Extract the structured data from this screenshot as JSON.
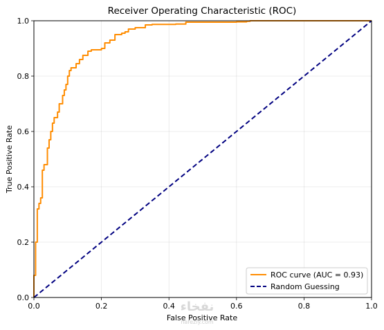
{
  "chart_data": {
    "type": "line",
    "title": "Receiver Operating Characteristic (ROC)",
    "xlabel": "False Positive Rate",
    "ylabel": "True Positive Rate",
    "xlim": [
      0.0,
      1.0
    ],
    "ylim": [
      0.0,
      1.0
    ],
    "xticks": [
      "0.0",
      "0.2",
      "0.4",
      "0.6",
      "0.8",
      "1.0"
    ],
    "yticks": [
      "0.0",
      "0.2",
      "0.4",
      "0.6",
      "0.8",
      "1.0"
    ],
    "grid": true,
    "legend_position": "lower-right",
    "series": [
      {
        "name": "ROC curve (AUC = 0.93)",
        "color": "#ff8c00",
        "style": "solid",
        "x": [
          0.0,
          0.0,
          0.005,
          0.005,
          0.01,
          0.01,
          0.015,
          0.015,
          0.02,
          0.02,
          0.025,
          0.025,
          0.03,
          0.03,
          0.04,
          0.04,
          0.045,
          0.045,
          0.05,
          0.05,
          0.055,
          0.055,
          0.06,
          0.06,
          0.07,
          0.07,
          0.075,
          0.075,
          0.085,
          0.085,
          0.09,
          0.09,
          0.095,
          0.095,
          0.1,
          0.1,
          0.105,
          0.105,
          0.11,
          0.11,
          0.125,
          0.125,
          0.135,
          0.135,
          0.145,
          0.145,
          0.16,
          0.16,
          0.17,
          0.17,
          0.2,
          0.2,
          0.21,
          0.21,
          0.225,
          0.225,
          0.24,
          0.24,
          0.26,
          0.26,
          0.27,
          0.27,
          0.28,
          0.28,
          0.3,
          0.3,
          0.33,
          0.33,
          0.35,
          0.35,
          0.42,
          0.42,
          0.45,
          0.45,
          0.6,
          0.6,
          0.63,
          0.63,
          0.64,
          0.64,
          1.0
        ],
        "y": [
          0.0,
          0.08,
          0.08,
          0.2,
          0.2,
          0.32,
          0.32,
          0.34,
          0.34,
          0.36,
          0.36,
          0.46,
          0.46,
          0.48,
          0.48,
          0.54,
          0.54,
          0.57,
          0.57,
          0.6,
          0.6,
          0.63,
          0.63,
          0.65,
          0.65,
          0.67,
          0.67,
          0.7,
          0.7,
          0.73,
          0.73,
          0.75,
          0.75,
          0.77,
          0.77,
          0.8,
          0.8,
          0.82,
          0.82,
          0.83,
          0.83,
          0.845,
          0.845,
          0.86,
          0.86,
          0.875,
          0.875,
          0.89,
          0.89,
          0.895,
          0.895,
          0.9,
          0.9,
          0.92,
          0.92,
          0.93,
          0.93,
          0.95,
          0.95,
          0.955,
          0.955,
          0.96,
          0.96,
          0.97,
          0.97,
          0.975,
          0.975,
          0.985,
          0.985,
          0.987,
          0.987,
          0.988,
          0.988,
          0.995,
          0.995,
          0.996,
          0.996,
          0.998,
          0.998,
          1.0,
          1.0
        ]
      },
      {
        "name": "Random Guessing",
        "color": "#000080",
        "style": "dashed",
        "x": [
          0.0,
          1.0
        ],
        "y": [
          0.0,
          1.0
        ]
      }
    ]
  },
  "watermark": {
    "text": "نفخاء",
    "subtext": "nafezly.com"
  }
}
